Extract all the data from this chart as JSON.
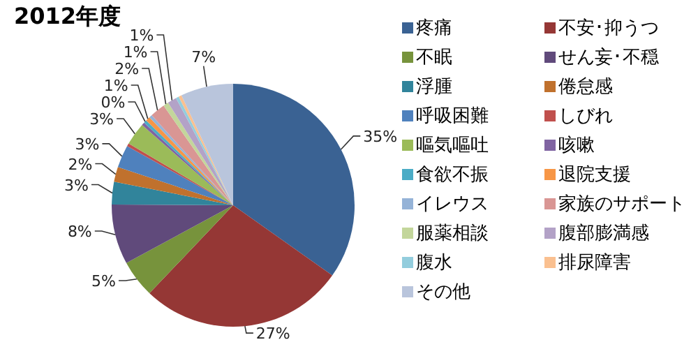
{
  "chart_data": {
    "type": "pie",
    "title": "2012年度",
    "legend": "right",
    "categories": [
      "疼痛",
      "不安･抑うつ",
      "不眠",
      "せん妄･不穏",
      "浮腫",
      "倦怠感",
      "呼吸困難",
      "しびれ",
      "嘔気嘔吐",
      "咳嗽",
      "食欲不振",
      "退院支援",
      "イレウス",
      "家族のサポート",
      "服薬相談",
      "腹部膨満感",
      "腹水",
      "排尿障害",
      "その他"
    ],
    "values": [
      34.8,
      27.3,
      5,
      8,
      3,
      2,
      3,
      0.4,
      3,
      0.4,
      0.4,
      0.6,
      0.4,
      2,
      0.7,
      1.2,
      0.4,
      0.4,
      7
    ],
    "value_labels": [
      "35%",
      "27%",
      "5%",
      "8%",
      "3%",
      "2%",
      "3%",
      null,
      "3%",
      null,
      "0%",
      "1%",
      null,
      "2%",
      "1%",
      "1%",
      null,
      null,
      "7%"
    ],
    "colors": [
      "#3a6293",
      "#953735",
      "#77933c",
      "#604a7b",
      "#31849b",
      "#c0712d",
      "#4f81bd",
      "#c0504d",
      "#9bbb59",
      "#8064a2",
      "#4bacc6",
      "#f79646",
      "#95b3d7",
      "#d99694",
      "#c3d69b",
      "#b3a2c7",
      "#93cddd",
      "#fac090",
      "#b9c5dc"
    ]
  }
}
